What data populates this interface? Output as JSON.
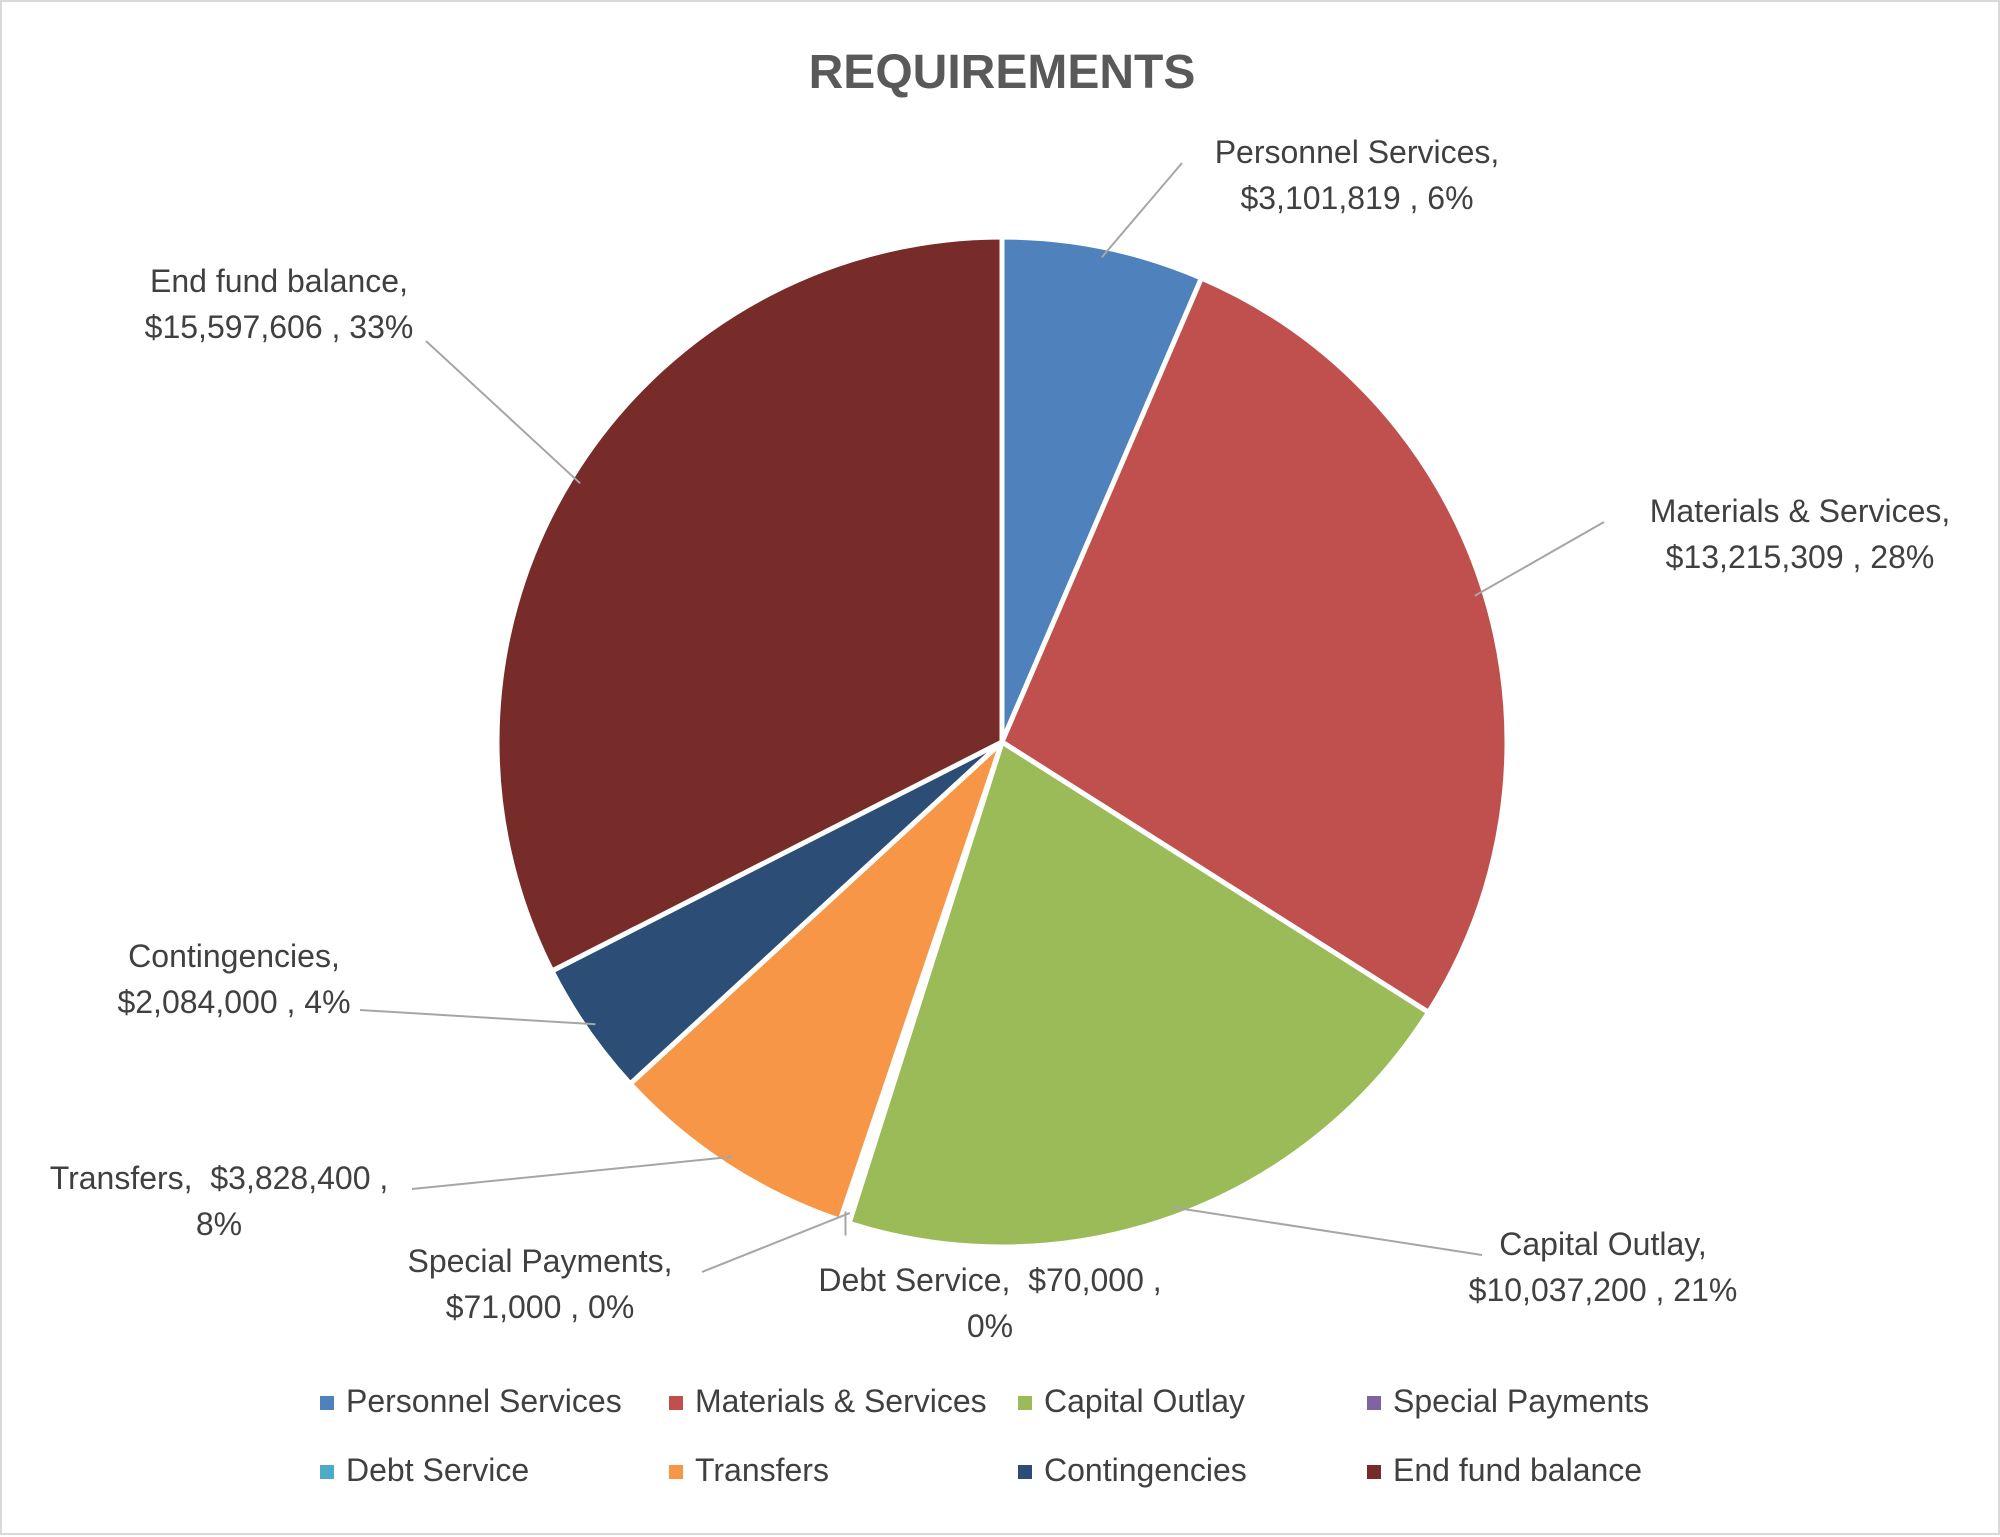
{
  "chart_data": {
    "type": "pie",
    "title": "REQUIREMENTS",
    "slices": [
      {
        "name": "Personnel Services",
        "value": 3101819,
        "pct": 6,
        "color": "#4f81bd",
        "label_lines": [
          "Personnel Services,",
          "$3,101,819 , 6%"
        ]
      },
      {
        "name": "Materials & Services",
        "value": 13215309,
        "pct": 28,
        "color": "#c0504d",
        "label_lines": [
          "Materials & Services,",
          "$13,215,309 , 28%"
        ]
      },
      {
        "name": "Capital Outlay",
        "value": 10037200,
        "pct": 21,
        "color": "#9bbb59",
        "label_lines": [
          "Capital Outlay,",
          "$10,037,200 , 21%"
        ]
      },
      {
        "name": "Special Payments",
        "value": 71000,
        "pct": 0,
        "color": "#8064a2",
        "label_lines": [
          "Special Payments,",
          "$71,000 , 0%"
        ]
      },
      {
        "name": "Debt Service",
        "value": 70000,
        "pct": 0,
        "color": "#4bacc6",
        "label_lines": [
          "Debt Service,  $70,000 ,",
          "0%"
        ]
      },
      {
        "name": "Transfers",
        "value": 3828400,
        "pct": 8,
        "color": "#f79646",
        "label_lines": [
          "Transfers,  $3,828,400 ,",
          "8%"
        ]
      },
      {
        "name": "Contingencies",
        "value": 2084000,
        "pct": 4,
        "color": "#2c4d75",
        "label_lines": [
          "Contingencies,",
          "$2,084,000 , 4%"
        ]
      },
      {
        "name": "End fund balance",
        "value": 15597606,
        "pct": 33,
        "color": "#772c2a",
        "label_lines": [
          "End fund balance,",
          "$15,597,606 , 33%"
        ]
      }
    ],
    "legend": {
      "position": "bottom",
      "items": [
        "Personnel Services",
        "Materials & Services",
        "Capital Outlay",
        "Special Payments",
        "Debt Service",
        "Transfers",
        "Contingencies",
        "End fund balance"
      ]
    }
  }
}
